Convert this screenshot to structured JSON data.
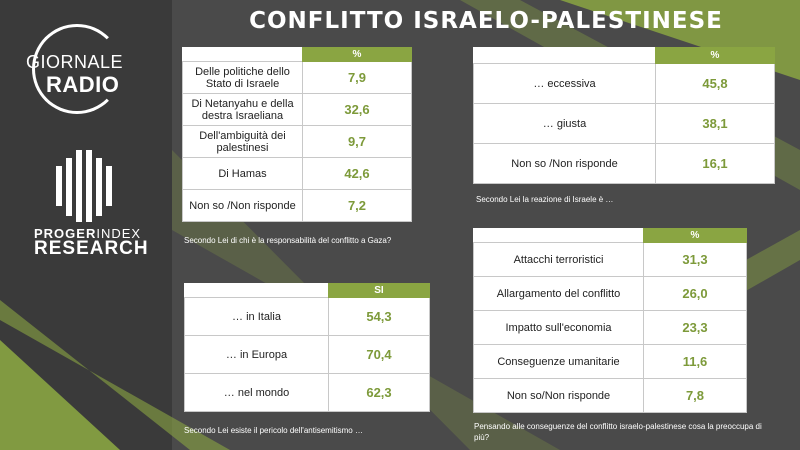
{
  "title": "CONFLITTO ISRAELO-PALESTINESE",
  "logo": {
    "line1": "GIORNALE",
    "line2": "RADIO"
  },
  "brand": {
    "line1_a": "PROGER",
    "line1_b": "INDEX",
    "line2": "RESEARCH"
  },
  "colors": {
    "accent": "#8aa542",
    "value": "#7d9a3a",
    "sidebar": "#3a3a3a",
    "background": "#4a4a4a"
  },
  "table1": {
    "header": "%",
    "rows": [
      {
        "label": "Delle politiche dello Stato di Israele",
        "value": "7,9"
      },
      {
        "label": "Di Netanyahu e della destra Israeliana",
        "value": "32,6"
      },
      {
        "label": "Dell'ambiguità dei palestinesi",
        "value": "9,7"
      },
      {
        "label": "Di Hamas",
        "value": "42,6"
      },
      {
        "label": "Non so /Non risponde",
        "value": "7,2"
      }
    ],
    "caption": "Secondo Lei di chi è la responsabilità del conflitto a Gaza?"
  },
  "table2": {
    "header": "%",
    "rows": [
      {
        "label": "… eccessiva",
        "value": "45,8"
      },
      {
        "label": "… giusta",
        "value": "38,1"
      },
      {
        "label": "Non so /Non risponde",
        "value": "16,1"
      }
    ],
    "caption": "Secondo Lei la reazione di Israele è …"
  },
  "table3": {
    "header": "SI",
    "rows": [
      {
        "label": "… in Italia",
        "value": "54,3"
      },
      {
        "label": "… in Europa",
        "value": "70,4"
      },
      {
        "label": "… nel mondo",
        "value": "62,3"
      }
    ],
    "caption": "Secondo Lei esiste il pericolo dell'antisemitismo …"
  },
  "table4": {
    "header": "%",
    "rows": [
      {
        "label": "Attacchi terroristici",
        "value": "31,3"
      },
      {
        "label": "Allargamento del conflitto",
        "value": "26,0"
      },
      {
        "label": "Impatto sull'economia",
        "value": "23,3"
      },
      {
        "label": "Conseguenze umanitarie",
        "value": "11,6"
      },
      {
        "label": "Non so/Non risponde",
        "value": "7,8"
      }
    ],
    "caption": "Pensando alle conseguenze del conflitto israelo-palestinese cosa la preoccupa di più?"
  }
}
